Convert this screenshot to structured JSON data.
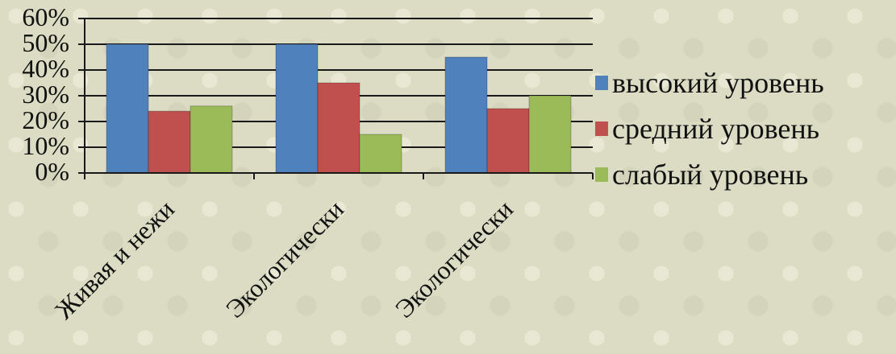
{
  "chart_data": {
    "type": "bar",
    "categories": [
      "Живая и нежи",
      "Экологически",
      "Экологически"
    ],
    "series": [
      {
        "name": "высокий уровень",
        "values": [
          50,
          50,
          45
        ],
        "color": "#4f81bd"
      },
      {
        "name": "средний уровень",
        "values": [
          24,
          35,
          25
        ],
        "color": "#c0504d"
      },
      {
        "name": "слабый уровень",
        "values": [
          26,
          15,
          30
        ],
        "color": "#9bbb59"
      }
    ],
    "yticks": [
      "0%",
      "10%",
      "20%",
      "30%",
      "40%",
      "50%",
      "60%"
    ],
    "ylim": [
      0,
      60
    ],
    "grid": true,
    "legend_position": "right"
  }
}
